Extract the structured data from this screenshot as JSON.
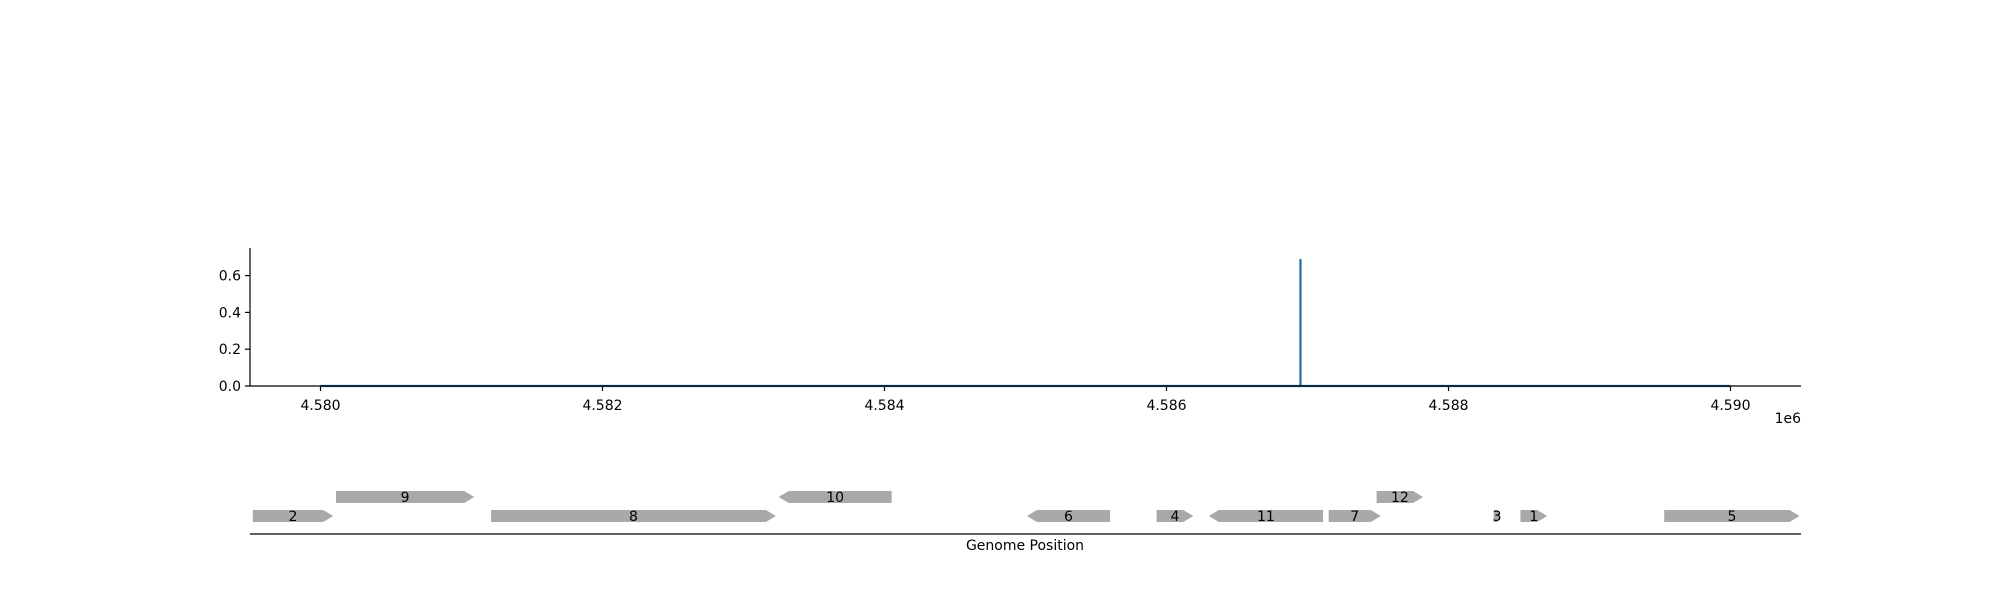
{
  "colors": {
    "signal": "#1f6fa8",
    "gene_fill": "#a9a9a9",
    "axis": "#000000",
    "background": "#ffffff"
  },
  "chart_data": [
    {
      "type": "line",
      "title": "",
      "xlabel": "",
      "ylabel": "",
      "x_offset_label": "1e6",
      "xlim": [
        4.5795,
        4.5905
      ],
      "ylim": [
        0.0,
        0.75
      ],
      "x_ticks": [
        4.58,
        4.582,
        4.584,
        4.586,
        4.588,
        4.59
      ],
      "x_tick_labels": [
        "4.580",
        "4.582",
        "4.584",
        "4.586",
        "4.588",
        "4.590"
      ],
      "y_ticks": [
        0.0,
        0.2,
        0.4,
        0.6
      ],
      "y_tick_labels": [
        "0.0",
        "0.2",
        "0.4",
        "0.6"
      ],
      "grid": false,
      "series": [
        {
          "x": [
            4.58,
            4.58695,
            4.58695,
            4.58695,
            4.59
          ],
          "y": [
            0.0,
            0.0,
            0.69,
            0.0,
            0.0
          ]
        }
      ]
    },
    {
      "type": "gene_track",
      "xlabel": "Genome Position",
      "xlim": [
        4.5795,
        4.5905
      ],
      "genes": [
        {
          "label": "2",
          "start": 4.57952,
          "end": 4.58009,
          "strand": "+",
          "row": 0
        },
        {
          "label": "9",
          "start": 4.58011,
          "end": 4.58109,
          "strand": "+",
          "row": 1
        },
        {
          "label": "8",
          "start": 4.58121,
          "end": 4.58323,
          "strand": "+",
          "row": 0
        },
        {
          "label": "10",
          "start": 4.58325,
          "end": 4.58405,
          "strand": "-",
          "row": 1
        },
        {
          "label": "6",
          "start": 4.58501,
          "end": 4.5856,
          "strand": "-",
          "row": 0
        },
        {
          "label": "4",
          "start": 4.58593,
          "end": 4.58619,
          "strand": "+",
          "row": 0
        },
        {
          "label": "11",
          "start": 4.5863,
          "end": 4.58711,
          "strand": "-",
          "row": 0
        },
        {
          "label": "7",
          "start": 4.58715,
          "end": 4.58752,
          "strand": "+",
          "row": 0
        },
        {
          "label": "12",
          "start": 4.58749,
          "end": 4.58782,
          "strand": "+",
          "row": 1
        },
        {
          "label": "3",
          "start": 4.58832,
          "end": 4.58837,
          "strand": "+",
          "row": 0
        },
        {
          "label": "1",
          "start": 4.58851,
          "end": 4.5887,
          "strand": "+",
          "row": 0
        },
        {
          "label": "5",
          "start": 4.58953,
          "end": 4.59049,
          "strand": "+",
          "row": 0
        }
      ]
    }
  ]
}
